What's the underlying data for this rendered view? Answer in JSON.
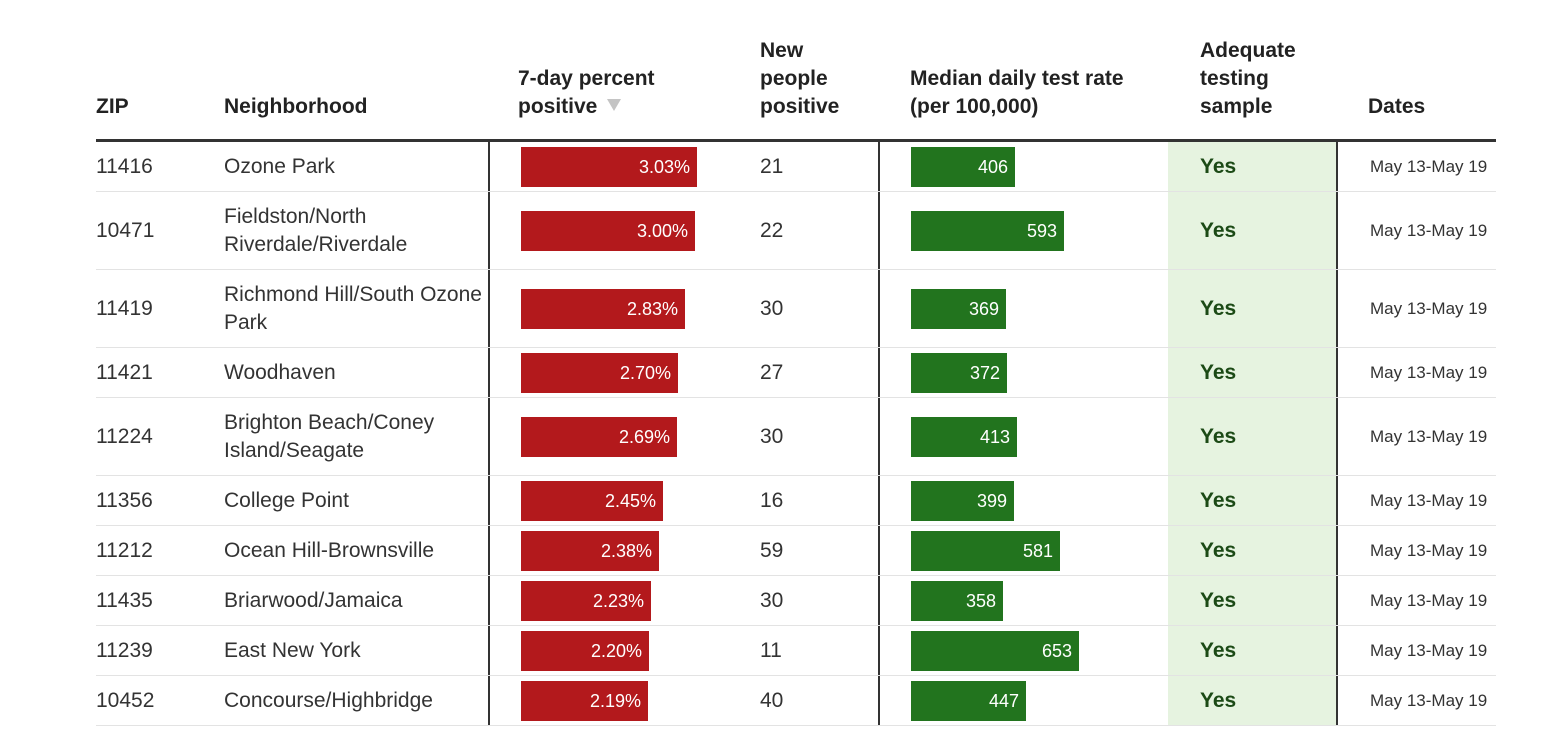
{
  "columns": {
    "zip": "ZIP",
    "neighborhood": "Neighborhood",
    "pct_positive": "7-day percent positive",
    "new_positive": "New people positive",
    "test_rate": "Median daily test rate (per 100,000)",
    "adequate": "Adequate testing sample",
    "dates": "Dates"
  },
  "sort_icon": "sort-desc-triangle",
  "colors": {
    "positive_bar": "#b3191c",
    "test_bar": "#22741e",
    "adequate_bg": "#e6f3e0"
  },
  "rows": [
    {
      "zip": "11416",
      "name": "Ozone Park",
      "pct": 3.03,
      "pct_label": "3.03%",
      "new": "21",
      "rate": 406,
      "rate_label": "406",
      "adequate": "Yes",
      "dates": "May 13-May 19"
    },
    {
      "zip": "10471",
      "name": "Fieldston/North Riverdale/Riverdale",
      "pct": 3.0,
      "pct_label": "3.00%",
      "new": "22",
      "rate": 593,
      "rate_label": "593",
      "adequate": "Yes",
      "dates": "May 13-May 19"
    },
    {
      "zip": "11419",
      "name": "Richmond Hill/South Ozone Park",
      "pct": 2.83,
      "pct_label": "2.83%",
      "new": "30",
      "rate": 369,
      "rate_label": "369",
      "adequate": "Yes",
      "dates": "May 13-May 19"
    },
    {
      "zip": "11421",
      "name": "Woodhaven",
      "pct": 2.7,
      "pct_label": "2.70%",
      "new": "27",
      "rate": 372,
      "rate_label": "372",
      "adequate": "Yes",
      "dates": "May 13-May 19"
    },
    {
      "zip": "11224",
      "name": "Brighton Beach/Coney Island/Seagate",
      "pct": 2.69,
      "pct_label": "2.69%",
      "new": "30",
      "rate": 413,
      "rate_label": "413",
      "adequate": "Yes",
      "dates": "May 13-May 19"
    },
    {
      "zip": "11356",
      "name": "College Point",
      "pct": 2.45,
      "pct_label": "2.45%",
      "new": "16",
      "rate": 399,
      "rate_label": "399",
      "adequate": "Yes",
      "dates": "May 13-May 19"
    },
    {
      "zip": "11212",
      "name": "Ocean Hill-Brownsville",
      "pct": 2.38,
      "pct_label": "2.38%",
      "new": "59",
      "rate": 581,
      "rate_label": "581",
      "adequate": "Yes",
      "dates": "May 13-May 19"
    },
    {
      "zip": "11435",
      "name": "Briarwood/Jamaica",
      "pct": 2.23,
      "pct_label": "2.23%",
      "new": "30",
      "rate": 358,
      "rate_label": "358",
      "adequate": "Yes",
      "dates": "May 13-May 19"
    },
    {
      "zip": "11239",
      "name": "East New York",
      "pct": 2.2,
      "pct_label": "2.20%",
      "new": "11",
      "rate": 653,
      "rate_label": "653",
      "adequate": "Yes",
      "dates": "May 13-May 19"
    },
    {
      "zip": "10452",
      "name": "Concourse/Highbridge",
      "pct": 2.19,
      "pct_label": "2.19%",
      "new": "40",
      "rate": 447,
      "rate_label": "447",
      "adequate": "Yes",
      "dates": "May 13-May 19"
    }
  ]
}
